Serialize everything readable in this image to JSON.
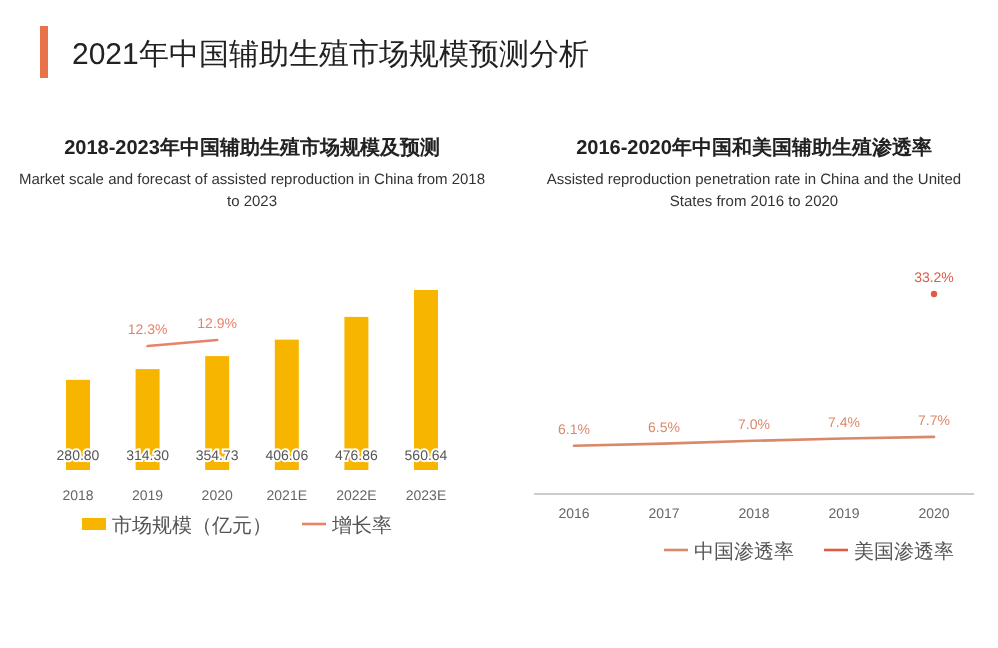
{
  "chart_data": [
    {
      "type": "other",
      "title": "2021年中国辅助生殖市场规模预测分析"
    },
    {
      "type": "bar",
      "title": "2018-2023年中国辅助生殖市场规模及预测",
      "subtitle": "Market scale and forecast of assisted reproduction in China from 2018 to 2023",
      "categories": [
        "2018",
        "2019",
        "2020",
        "2021E",
        "2022E",
        "2023E"
      ],
      "legend": "bottom",
      "series": [
        {
          "name": "市场规模（亿元）",
          "type": "bar",
          "color": "#f7b500",
          "values": [
            280.8,
            314.3,
            354.73,
            406.06,
            476.86,
            560.64
          ],
          "value_labels": [
            "280.80",
            "314.30",
            "354.73",
            "406.06",
            "476.86",
            "560.64"
          ]
        },
        {
          "name": "增长率",
          "type": "line",
          "axis": "y2",
          "color": "#e8826a",
          "values": [
            null,
            12.3,
            12.9,
            null,
            null,
            null
          ],
          "value_labels": [
            null,
            "12.3%",
            "12.9%",
            null,
            null,
            null
          ]
        }
      ]
    },
    {
      "type": "line",
      "title": "2016-2020年中国和美国辅助生殖渗透率",
      "subtitle": "Assisted reproduction penetration rate in China and the United States from 2016 to 2020",
      "categories": [
        "2016",
        "2017",
        "2018",
        "2019",
        "2020"
      ],
      "legend": "bottom right",
      "series": [
        {
          "name": "中国渗透率",
          "type": "line",
          "color": "#d9886a",
          "values": [
            6.1,
            6.5,
            7.0,
            7.4,
            7.7
          ],
          "value_labels": [
            "6.1%",
            "6.5%",
            "7.0%",
            "7.4%",
            "7.7%"
          ]
        },
        {
          "name": "美国渗透率",
          "type": "line",
          "marker": "circle",
          "color": "#e05a48",
          "values": [
            null,
            null,
            null,
            null,
            33.2
          ],
          "value_labels": [
            null,
            null,
            null,
            null,
            "33.2%"
          ]
        }
      ]
    }
  ]
}
